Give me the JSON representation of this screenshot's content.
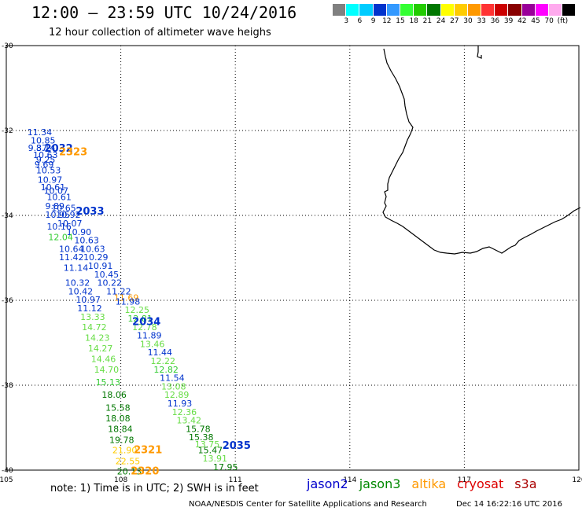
{
  "header": {
    "title": "12:00 – 23:59 UTC 10/24/2016",
    "subtitle": "12 hour collection of altimeter wave heighs"
  },
  "legend": {
    "colors": [
      "#808080",
      "#00ffff",
      "#00ccff",
      "#0033cc",
      "#3399ff",
      "#33ff33",
      "#22cc00",
      "#007700",
      "#ffff00",
      "#ffcc00",
      "#ff9900",
      "#ff3333",
      "#cc0000",
      "#880000",
      "#990099",
      "#ff00ff",
      "#ffaaee",
      "#000000"
    ],
    "labels": [
      "3",
      "6",
      "9",
      "12",
      "15",
      "18",
      "21",
      "24",
      "27",
      "30",
      "33",
      "36",
      "39",
      "42",
      "45",
      "70",
      "(ft)"
    ]
  },
  "map": {
    "lat_ticks": [
      "-30",
      "-32",
      "-34",
      "-36",
      "-38",
      "-40"
    ],
    "lon_ticks": [
      "105",
      "108",
      "111",
      "114",
      "117",
      "120"
    ],
    "lon_range": [
      105,
      120
    ],
    "lat_range": [
      -30,
      -40
    ],
    "grid": "dotted",
    "coastline": "Southwest Australia"
  },
  "tracks": {
    "points": [
      {
        "v": "11.34",
        "lon": 105.55,
        "lat": -32.11,
        "c": "#0033cc"
      },
      {
        "v": "10.85",
        "lon": 105.64,
        "lat": -32.31,
        "c": "#0033cc"
      },
      {
        "v": "9.37",
        "lon": 105.57,
        "lat": -32.48,
        "c": "#0033cc"
      },
      {
        "v": "8.14",
        "lon": 105.78,
        "lat": -32.48,
        "c": "#0033cc"
      },
      {
        "v": "10.63",
        "lon": 105.7,
        "lat": -32.65,
        "c": "#0033cc"
      },
      {
        "v": "9.25",
        "lon": 105.78,
        "lat": -32.76,
        "c": "#0033cc"
      },
      {
        "v": "9.69",
        "lon": 105.74,
        "lat": -32.87,
        "c": "#0033cc"
      },
      {
        "v": "10.53",
        "lon": 105.78,
        "lat": -33.01,
        "c": "#0033cc"
      },
      {
        "v": "10.97",
        "lon": 105.82,
        "lat": -33.23,
        "c": "#0033cc"
      },
      {
        "v": "10.61",
        "lon": 105.9,
        "lat": -33.41,
        "c": "#0033cc"
      },
      {
        "v": "10.07",
        "lon": 105.98,
        "lat": -33.49,
        "c": "#0033cc"
      },
      {
        "v": "10.61",
        "lon": 106.06,
        "lat": -33.64,
        "c": "#0033cc"
      },
      {
        "v": "9.89",
        "lon": 106.02,
        "lat": -33.85,
        "c": "#0033cc"
      },
      {
        "v": "10.65",
        "lon": 106.18,
        "lat": -33.9,
        "c": "#0033cc"
      },
      {
        "v": "10.95",
        "lon": 106.02,
        "lat": -34.06,
        "c": "#0033cc"
      },
      {
        "v": "10.92",
        "lon": 106.3,
        "lat": -34.06,
        "c": "#0033cc"
      },
      {
        "v": "10.07",
        "lon": 106.34,
        "lat": -34.26,
        "c": "#0033cc"
      },
      {
        "v": "10.16",
        "lon": 106.06,
        "lat": -34.33,
        "c": "#0033cc"
      },
      {
        "v": "10.90",
        "lon": 106.58,
        "lat": -34.46,
        "c": "#0033cc"
      },
      {
        "v": "12.04",
        "lon": 106.1,
        "lat": -34.58,
        "c": "#33cc33"
      },
      {
        "v": "10.63",
        "lon": 106.78,
        "lat": -34.66,
        "c": "#0033cc"
      },
      {
        "v": "10.64",
        "lon": 106.38,
        "lat": -34.86,
        "c": "#0033cc"
      },
      {
        "v": "10.63",
        "lon": 106.94,
        "lat": -34.86,
        "c": "#0033cc"
      },
      {
        "v": "11.42",
        "lon": 106.38,
        "lat": -35.06,
        "c": "#0033cc"
      },
      {
        "v": "10.29",
        "lon": 107.02,
        "lat": -35.06,
        "c": "#0033cc"
      },
      {
        "v": "10.91",
        "lon": 107.14,
        "lat": -35.26,
        "c": "#0033cc"
      },
      {
        "v": "11.14",
        "lon": 106.5,
        "lat": -35.31,
        "c": "#0033cc"
      },
      {
        "v": "10.45",
        "lon": 107.3,
        "lat": -35.46,
        "c": "#0033cc"
      },
      {
        "v": "10.32",
        "lon": 106.54,
        "lat": -35.66,
        "c": "#0033cc"
      },
      {
        "v": "10.22",
        "lon": 107.38,
        "lat": -35.66,
        "c": "#0033cc"
      },
      {
        "v": "10.42",
        "lon": 106.62,
        "lat": -35.86,
        "c": "#0033cc"
      },
      {
        "v": "11.22",
        "lon": 107.62,
        "lat": -35.86,
        "c": "#0033cc"
      },
      {
        "v": "10.97",
        "lon": 106.82,
        "lat": -36.06,
        "c": "#0033cc"
      },
      {
        "v": "11.69",
        "lon": 107.82,
        "lat": -36.01,
        "c": "#ff9900"
      },
      {
        "v": "11.98",
        "lon": 107.86,
        "lat": -36.1,
        "c": "#0033cc"
      },
      {
        "v": "11.12",
        "lon": 106.86,
        "lat": -36.26,
        "c": "#0033cc"
      },
      {
        "v": "12.25",
        "lon": 108.1,
        "lat": -36.3,
        "c": "#66dd44"
      },
      {
        "v": "13.33",
        "lon": 106.94,
        "lat": -36.46,
        "c": "#66dd44"
      },
      {
        "v": "12.81",
        "lon": 108.18,
        "lat": -36.5,
        "c": "#33cc33"
      },
      {
        "v": "14.72",
        "lon": 106.98,
        "lat": -36.7,
        "c": "#66dd44"
      },
      {
        "v": "12.78",
        "lon": 108.3,
        "lat": -36.7,
        "c": "#66dd44"
      },
      {
        "v": "11.89",
        "lon": 108.42,
        "lat": -36.9,
        "c": "#0033cc"
      },
      {
        "v": "14.23",
        "lon": 107.06,
        "lat": -36.95,
        "c": "#66dd44"
      },
      {
        "v": "13.46",
        "lon": 108.5,
        "lat": -37.1,
        "c": "#66dd44"
      },
      {
        "v": "14.27",
        "lon": 107.14,
        "lat": -37.2,
        "c": "#66dd44"
      },
      {
        "v": "11.44",
        "lon": 108.7,
        "lat": -37.3,
        "c": "#0033cc"
      },
      {
        "v": "12.22",
        "lon": 108.78,
        "lat": -37.5,
        "c": "#66dd44"
      },
      {
        "v": "14.46",
        "lon": 107.22,
        "lat": -37.45,
        "c": "#66dd44"
      },
      {
        "v": "12.82",
        "lon": 108.86,
        "lat": -37.7,
        "c": "#33cc33"
      },
      {
        "v": "14.70",
        "lon": 107.3,
        "lat": -37.7,
        "c": "#66dd44"
      },
      {
        "v": "11.54",
        "lon": 109.02,
        "lat": -37.9,
        "c": "#0033cc"
      },
      {
        "v": "15.13",
        "lon": 107.34,
        "lat": -38.0,
        "c": "#33cc33"
      },
      {
        "v": "13.08",
        "lon": 109.06,
        "lat": -38.1,
        "c": "#66dd44"
      },
      {
        "v": "12.89",
        "lon": 109.14,
        "lat": -38.3,
        "c": "#66dd44"
      },
      {
        "v": "18.06",
        "lon": 107.5,
        "lat": -38.3,
        "c": "#007700"
      },
      {
        "v": "11.93",
        "lon": 109.22,
        "lat": -38.5,
        "c": "#0033cc"
      },
      {
        "v": "15.58",
        "lon": 107.6,
        "lat": -38.6,
        "c": "#007700"
      },
      {
        "v": "12.36",
        "lon": 109.34,
        "lat": -38.7,
        "c": "#66dd44"
      },
      {
        "v": "18.08",
        "lon": 107.6,
        "lat": -38.85,
        "c": "#007700"
      },
      {
        "v": "13.42",
        "lon": 109.46,
        "lat": -38.9,
        "c": "#66dd44"
      },
      {
        "v": "15.78",
        "lon": 109.7,
        "lat": -39.1,
        "c": "#007700"
      },
      {
        "v": "18.84",
        "lon": 107.66,
        "lat": -39.1,
        "c": "#007700"
      },
      {
        "v": "15.38",
        "lon": 109.78,
        "lat": -39.3,
        "c": "#007700"
      },
      {
        "v": "19.78",
        "lon": 107.7,
        "lat": -39.36,
        "c": "#007700"
      },
      {
        "v": "13.75",
        "lon": 109.94,
        "lat": -39.46,
        "c": "#66dd44"
      },
      {
        "v": "21.90",
        "lon": 107.78,
        "lat": -39.6,
        "c": "#ffcc00"
      },
      {
        "v": "15.47",
        "lon": 110.02,
        "lat": -39.6,
        "c": "#007700"
      },
      {
        "v": "13.91",
        "lon": 110.14,
        "lat": -39.8,
        "c": "#66dd44"
      },
      {
        "v": "22.55",
        "lon": 107.86,
        "lat": -39.86,
        "c": "#ffcc00"
      },
      {
        "v": "17.95",
        "lon": 110.42,
        "lat": -40.0,
        "c": "#007700"
      },
      {
        "v": "20.13",
        "lon": 107.9,
        "lat": -40.1,
        "c": "#007700"
      }
    ],
    "time_labels": [
      {
        "t": "2032",
        "lon": 106.0,
        "lat": -32.5,
        "c": "#0033cc"
      },
      {
        "t": "2323",
        "lon": 106.38,
        "lat": -32.58,
        "c": "#ff9900"
      },
      {
        "t": "2033",
        "lon": 106.82,
        "lat": -33.98,
        "c": "#0033cc"
      },
      {
        "t": "2034",
        "lon": 108.3,
        "lat": -36.58,
        "c": "#0033cc"
      },
      {
        "t": "2035",
        "lon": 110.66,
        "lat": -39.5,
        "c": "#0033cc"
      },
      {
        "t": "2321",
        "lon": 108.34,
        "lat": -39.6,
        "c": "#ff9900"
      },
      {
        "t": "2320",
        "lon": 108.26,
        "lat": -40.1,
        "c": "#ff9900"
      }
    ]
  },
  "footer": {
    "note": "note: 1) Time is in UTC; 2) SWH is in feet",
    "satellites": [
      {
        "name": "jason2",
        "color": "#0000cc"
      },
      {
        "name": "jason3",
        "color": "#008800"
      },
      {
        "name": "altika",
        "color": "#ff9900"
      },
      {
        "name": "cryosat",
        "color": "#dd0000"
      },
      {
        "name": "s3a",
        "color": "#aa0000"
      }
    ],
    "credit": "NOAA/NESDIS Center for Satellite Applications and Research",
    "timestamp": "Dec 14 16:22:16 UTC 2016"
  }
}
